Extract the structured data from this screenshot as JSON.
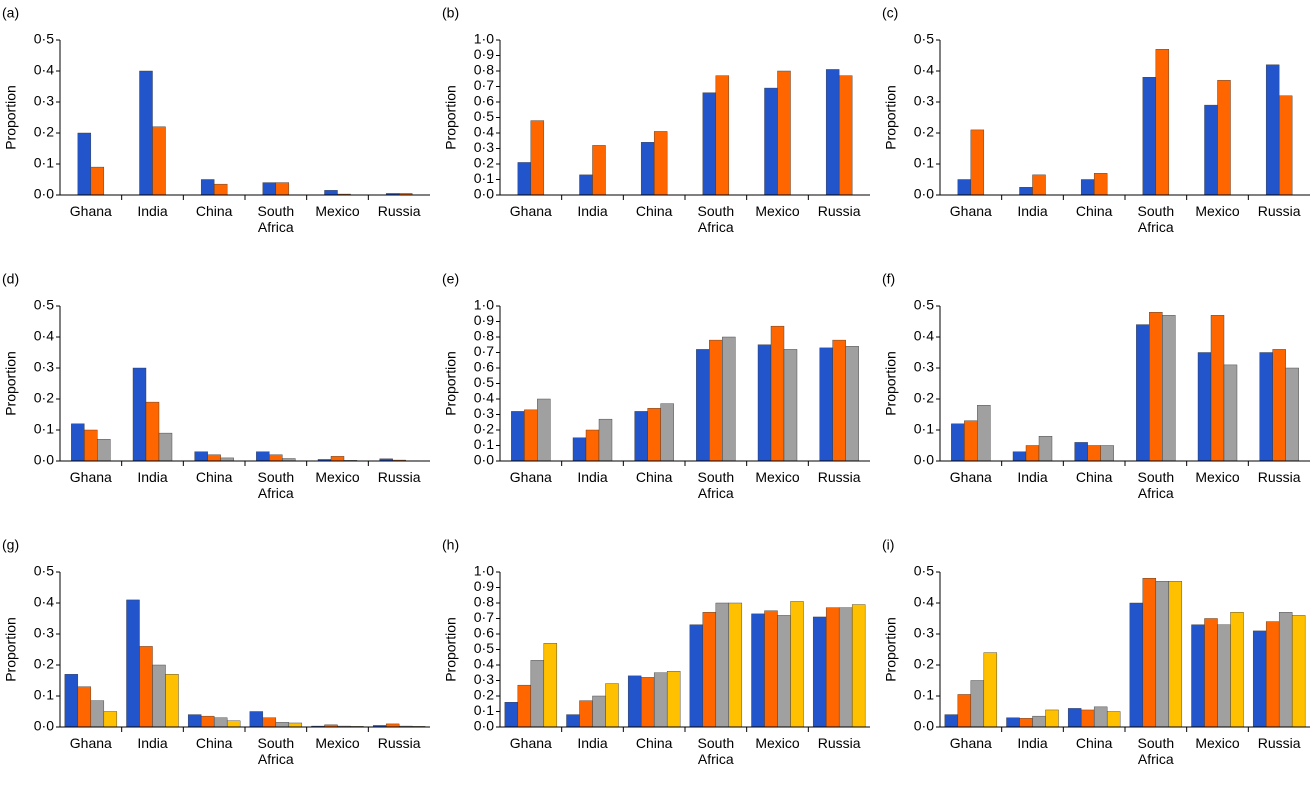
{
  "chart_data": [
    {
      "type": "bar",
      "title": "(a)",
      "ylabel": "Proportion",
      "categories": [
        "Ghana",
        "India",
        "China",
        "South Africa",
        "Mexico",
        "Russia"
      ],
      "series": [
        {
          "color": "#2255cc",
          "values": [
            0.2,
            0.4,
            0.05,
            0.04,
            0.015,
            0.005
          ]
        },
        {
          "color": "#ff6600",
          "values": [
            0.09,
            0.22,
            0.035,
            0.04,
            0.003,
            0.005
          ]
        }
      ],
      "ylim": [
        0,
        0.5
      ],
      "yticks": [
        {
          "value": 0,
          "label": "0·0"
        },
        {
          "value": 0.1,
          "label": "0·1"
        },
        {
          "value": 0.2,
          "label": "0·2"
        },
        {
          "value": 0.3,
          "label": "0·3"
        },
        {
          "value": 0.4,
          "label": "0·4"
        },
        {
          "value": 0.5,
          "label": "0·5"
        }
      ]
    },
    {
      "type": "bar",
      "title": "(b)",
      "ylabel": "Proportion",
      "categories": [
        "Ghana",
        "India",
        "China",
        "South Africa",
        "Mexico",
        "Russia"
      ],
      "series": [
        {
          "color": "#2255cc",
          "values": [
            0.21,
            0.13,
            0.34,
            0.66,
            0.69,
            0.81
          ]
        },
        {
          "color": "#ff6600",
          "values": [
            0.48,
            0.32,
            0.41,
            0.77,
            0.8,
            0.77
          ]
        }
      ],
      "ylim": [
        0,
        1.0
      ],
      "yticks": [
        {
          "value": 0,
          "label": "0·0"
        },
        {
          "value": 0.1,
          "label": "0·1"
        },
        {
          "value": 0.2,
          "label": "0·2"
        },
        {
          "value": 0.3,
          "label": "0·3"
        },
        {
          "value": 0.4,
          "label": "0·4"
        },
        {
          "value": 0.5,
          "label": "0·5"
        },
        {
          "value": 0.6,
          "label": "0·6"
        },
        {
          "value": 0.7,
          "label": "0·7"
        },
        {
          "value": 0.8,
          "label": "0·8"
        },
        {
          "value": 0.9,
          "label": "0·9"
        },
        {
          "value": 1.0,
          "label": "1·0"
        }
      ]
    },
    {
      "type": "bar",
      "title": "(c)",
      "ylabel": "Proportion",
      "categories": [
        "Ghana",
        "India",
        "China",
        "South Africa",
        "Mexico",
        "Russia"
      ],
      "series": [
        {
          "color": "#2255cc",
          "values": [
            0.05,
            0.025,
            0.05,
            0.38,
            0.29,
            0.42
          ]
        },
        {
          "color": "#ff6600",
          "values": [
            0.21,
            0.065,
            0.07,
            0.47,
            0.37,
            0.32
          ]
        }
      ],
      "ylim": [
        0,
        0.5
      ],
      "yticks": [
        {
          "value": 0,
          "label": "0·0"
        },
        {
          "value": 0.1,
          "label": "0·1"
        },
        {
          "value": 0.2,
          "label": "0·2"
        },
        {
          "value": 0.3,
          "label": "0·3"
        },
        {
          "value": 0.4,
          "label": "0·4"
        },
        {
          "value": 0.5,
          "label": "0·5"
        }
      ]
    },
    {
      "type": "bar",
      "title": "(d)",
      "ylabel": "Proportion",
      "categories": [
        "Ghana",
        "India",
        "China",
        "South Africa",
        "Mexico",
        "Russia"
      ],
      "series": [
        {
          "color": "#2255cc",
          "values": [
            0.12,
            0.3,
            0.03,
            0.03,
            0.005,
            0.007
          ]
        },
        {
          "color": "#ff6600",
          "values": [
            0.1,
            0.19,
            0.02,
            0.02,
            0.015,
            0.003
          ]
        },
        {
          "color": "#a0a0a0",
          "values": [
            0.07,
            0.09,
            0.01,
            0.008,
            0.002,
            0.001
          ]
        }
      ],
      "ylim": [
        0,
        0.5
      ],
      "yticks": [
        {
          "value": 0,
          "label": "0·0"
        },
        {
          "value": 0.1,
          "label": "0·1"
        },
        {
          "value": 0.2,
          "label": "0·2"
        },
        {
          "value": 0.3,
          "label": "0·3"
        },
        {
          "value": 0.4,
          "label": "0·4"
        },
        {
          "value": 0.5,
          "label": "0·5"
        }
      ]
    },
    {
      "type": "bar",
      "title": "(e)",
      "ylabel": "Proportion",
      "categories": [
        "Ghana",
        "India",
        "China",
        "South Africa",
        "Mexico",
        "Russia"
      ],
      "series": [
        {
          "color": "#2255cc",
          "values": [
            0.32,
            0.15,
            0.32,
            0.72,
            0.75,
            0.73
          ]
        },
        {
          "color": "#ff6600",
          "values": [
            0.33,
            0.2,
            0.34,
            0.78,
            0.87,
            0.78
          ]
        },
        {
          "color": "#a0a0a0",
          "values": [
            0.4,
            0.27,
            0.37,
            0.8,
            0.72,
            0.74
          ]
        }
      ],
      "ylim": [
        0,
        1.0
      ],
      "yticks": [
        {
          "value": 0,
          "label": "0·0"
        },
        {
          "value": 0.1,
          "label": "0·1"
        },
        {
          "value": 0.2,
          "label": "0·2"
        },
        {
          "value": 0.3,
          "label": "0·3"
        },
        {
          "value": 0.4,
          "label": "0·4"
        },
        {
          "value": 0.5,
          "label": "0·5"
        },
        {
          "value": 0.6,
          "label": "0·6"
        },
        {
          "value": 0.7,
          "label": "0·7"
        },
        {
          "value": 0.8,
          "label": "0·8"
        },
        {
          "value": 0.9,
          "label": "0·9"
        },
        {
          "value": 1.0,
          "label": "1·0"
        }
      ]
    },
    {
      "type": "bar",
      "title": "(f)",
      "ylabel": "Proportion",
      "categories": [
        "Ghana",
        "India",
        "China",
        "South Africa",
        "Mexico",
        "Russia"
      ],
      "series": [
        {
          "color": "#2255cc",
          "values": [
            0.12,
            0.03,
            0.06,
            0.44,
            0.35,
            0.35
          ]
        },
        {
          "color": "#ff6600",
          "values": [
            0.13,
            0.05,
            0.05,
            0.48,
            0.47,
            0.36
          ]
        },
        {
          "color": "#a0a0a0",
          "values": [
            0.18,
            0.08,
            0.05,
            0.47,
            0.31,
            0.3
          ]
        }
      ],
      "ylim": [
        0,
        0.5
      ],
      "yticks": [
        {
          "value": 0,
          "label": "0·0"
        },
        {
          "value": 0.1,
          "label": "0·1"
        },
        {
          "value": 0.2,
          "label": "0·2"
        },
        {
          "value": 0.3,
          "label": "0·3"
        },
        {
          "value": 0.4,
          "label": "0·4"
        },
        {
          "value": 0.5,
          "label": "0·5"
        }
      ]
    },
    {
      "type": "bar",
      "title": "(g)",
      "ylabel": "Proportion",
      "categories": [
        "Ghana",
        "India",
        "China",
        "South Africa",
        "Mexico",
        "Russia"
      ],
      "series": [
        {
          "color": "#2255cc",
          "values": [
            0.17,
            0.41,
            0.04,
            0.05,
            0.003,
            0.005
          ]
        },
        {
          "color": "#ff6600",
          "values": [
            0.13,
            0.26,
            0.035,
            0.03,
            0.007,
            0.01
          ]
        },
        {
          "color": "#a0a0a0",
          "values": [
            0.085,
            0.2,
            0.03,
            0.015,
            0.003,
            0.003
          ]
        },
        {
          "color": "#ffc000",
          "values": [
            0.05,
            0.17,
            0.02,
            0.013,
            0.002,
            0.002
          ]
        }
      ],
      "ylim": [
        0,
        0.5
      ],
      "yticks": [
        {
          "value": 0,
          "label": "0·0"
        },
        {
          "value": 0.1,
          "label": "0·1"
        },
        {
          "value": 0.2,
          "label": "0·2"
        },
        {
          "value": 0.3,
          "label": "0·3"
        },
        {
          "value": 0.4,
          "label": "0·4"
        },
        {
          "value": 0.5,
          "label": "0·5"
        }
      ]
    },
    {
      "type": "bar",
      "title": "(h)",
      "ylabel": "Proportion",
      "categories": [
        "Ghana",
        "India",
        "China",
        "South Africa",
        "Mexico",
        "Russia"
      ],
      "series": [
        {
          "color": "#2255cc",
          "values": [
            0.16,
            0.08,
            0.33,
            0.66,
            0.73,
            0.71
          ]
        },
        {
          "color": "#ff6600",
          "values": [
            0.27,
            0.17,
            0.32,
            0.74,
            0.75,
            0.77
          ]
        },
        {
          "color": "#a0a0a0",
          "values": [
            0.43,
            0.2,
            0.35,
            0.8,
            0.72,
            0.77
          ]
        },
        {
          "color": "#ffc000",
          "values": [
            0.54,
            0.28,
            0.36,
            0.8,
            0.81,
            0.79
          ]
        }
      ],
      "ylim": [
        0,
        1.0
      ],
      "yticks": [
        {
          "value": 0,
          "label": "0·0"
        },
        {
          "value": 0.1,
          "label": "0·1"
        },
        {
          "value": 0.2,
          "label": "0·2"
        },
        {
          "value": 0.3,
          "label": "0·3"
        },
        {
          "value": 0.4,
          "label": "0·4"
        },
        {
          "value": 0.5,
          "label": "0·5"
        },
        {
          "value": 0.6,
          "label": "0·6"
        },
        {
          "value": 0.7,
          "label": "0·7"
        },
        {
          "value": 0.8,
          "label": "0·8"
        },
        {
          "value": 0.9,
          "label": "0·9"
        },
        {
          "value": 1.0,
          "label": "1·0"
        }
      ]
    },
    {
      "type": "bar",
      "title": "(i)",
      "ylabel": "Proportion",
      "categories": [
        "Ghana",
        "India",
        "China",
        "South Africa",
        "Mexico",
        "Russia"
      ],
      "series": [
        {
          "color": "#2255cc",
          "values": [
            0.04,
            0.03,
            0.06,
            0.4,
            0.33,
            0.31
          ]
        },
        {
          "color": "#ff6600",
          "values": [
            0.105,
            0.028,
            0.055,
            0.48,
            0.35,
            0.34
          ]
        },
        {
          "color": "#a0a0a0",
          "values": [
            0.15,
            0.035,
            0.065,
            0.47,
            0.33,
            0.37
          ]
        },
        {
          "color": "#ffc000",
          "values": [
            0.24,
            0.055,
            0.05,
            0.47,
            0.37,
            0.36
          ]
        }
      ],
      "ylim": [
        0,
        0.5
      ],
      "yticks": [
        {
          "value": 0,
          "label": "0·0"
        },
        {
          "value": 0.1,
          "label": "0·1"
        },
        {
          "value": 0.2,
          "label": "0·2"
        },
        {
          "value": 0.3,
          "label": "0·3"
        },
        {
          "value": 0.4,
          "label": "0·4"
        },
        {
          "value": 0.5,
          "label": "0·5"
        }
      ]
    }
  ]
}
